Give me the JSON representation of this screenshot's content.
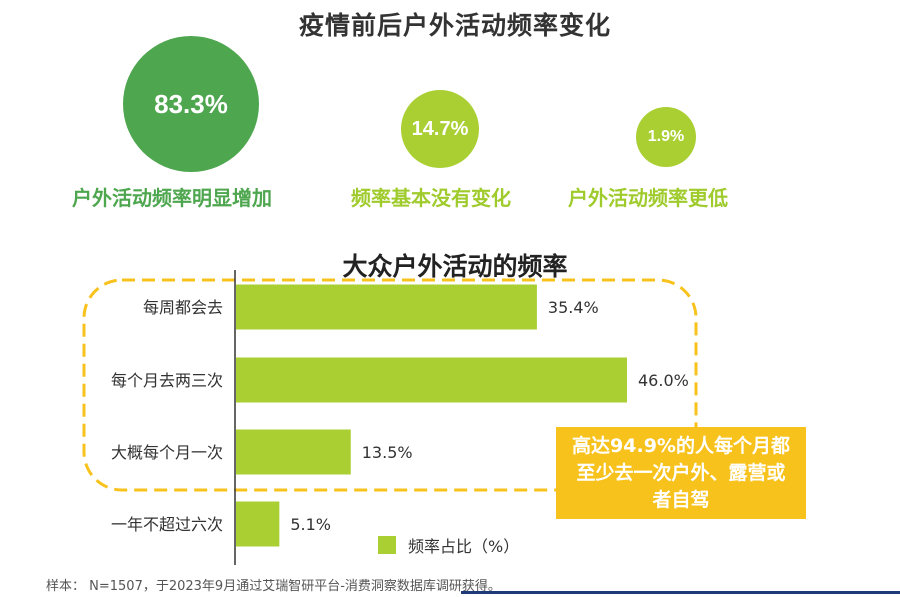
{
  "top_title": "疫情前后户外活动频率变化",
  "circles": [
    {
      "value": "83.3%",
      "label": "户外活动频率明显增加"
    },
    {
      "value": "14.7%",
      "label": "频率基本没有变化"
    },
    {
      "value": "1.9%",
      "label": "户外活动频率更低"
    }
  ],
  "chart_data": {
    "type": "bar",
    "orientation": "horizontal",
    "title": "大众户外活动的频率",
    "categories": [
      "每周都会去",
      "每个月去两三次",
      "大概每个月一次",
      "一年不超过六次"
    ],
    "series": [
      {
        "name": "频率占比（%）",
        "values": [
          35.4,
          46.0,
          13.5,
          5.1
        ],
        "labels": [
          "35.4%",
          "46.0%",
          "13.5%",
          "5.1%"
        ]
      }
    ],
    "bar_color": "#a9cf33",
    "highlight_color": "#f8c21d"
  },
  "callout": "高达94.9%的人每个月都至少去一次户外、露营或者自驾",
  "legend_label": "频率占比（%）",
  "footnote": "样本：  N=1507，于2023年9月通过艾瑞智研平台-消费洞察数据库调研获得。"
}
